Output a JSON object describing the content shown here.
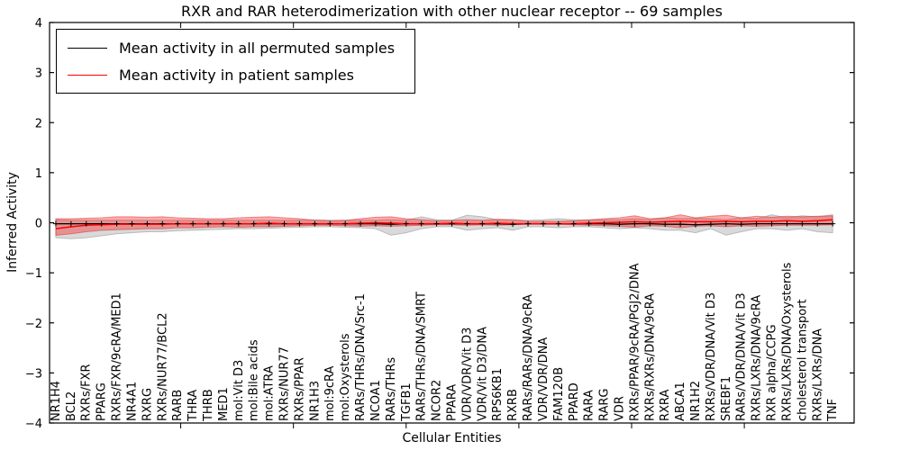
{
  "title": "RXR and RAR heterodimerization with other nuclear receptor -- 69 samples",
  "legend": {
    "items": [
      {
        "label": "Mean activity in all permuted samples",
        "color": "#000000"
      },
      {
        "label": "Mean activity in patient samples",
        "color": "#ff0000"
      }
    ]
  },
  "colors": {
    "permuted_line": "#000000",
    "patient_line": "#ff0000",
    "permuted_band_fill": "rgba(128,128,128,0.30)",
    "permuted_band_edge": "rgba(128,128,128,0.45)",
    "patient_band_fill": "rgba(255,0,0,0.33)",
    "patient_band_edge": "rgba(220,40,40,0.50)",
    "axis": "#000000"
  },
  "chart_data": {
    "type": "line",
    "title": "RXR and RAR heterodimerization with other nuclear receptor -- 69 samples",
    "xlabel": "Cellular Entities",
    "ylabel": "Inferred Activity",
    "ylim": [
      -4,
      4
    ],
    "yticks": [
      4,
      3,
      2,
      1,
      0,
      -1,
      -2,
      -3,
      -4
    ],
    "xtick_marks": [
      8.2,
      15.6,
      23,
      30.4,
      37.8,
      45.2
    ],
    "grid": false,
    "legend_position": "upper left",
    "categories": [
      "NR1H4",
      "BCL2",
      "RXRs/FXR",
      "PPARG",
      "RXRs/FXR/9cRA/MED1",
      "NR4A1",
      "RXRG",
      "RXRs/NUR77/BCL2",
      "RARB",
      "THRA",
      "THRB",
      "MED1",
      "mol:Vit D3",
      "mol:Bile acids",
      "mol:ATRA",
      "RXRs/NUR77",
      "RXRs/PPAR",
      "NR1H3",
      "mol:9cRA",
      "mol:Oxysterols",
      "RARs/THRs/DNA/Src-1",
      "NCOA1",
      "RARs/THRs",
      "TGFB1",
      "RARs/THRs/DNA/SMRT",
      "NCOR2",
      "PPARA",
      "VDR/VDR/Vit D3",
      "VDR/Vit D3/DNA",
      "RPS6KB1",
      "RXRB",
      "RARs/RARs/DNA/9cRA",
      "VDR/VDR/DNA",
      "FAM120B",
      "PPARD",
      "RARA",
      "RARG",
      "VDR",
      "RXRs/PPAR/9cRA/PGJ2/DNA",
      "RXRs/RXRs/DNA/9cRA",
      "RXRA",
      "ABCA1",
      "NR1H2",
      "RXRs/VDR/DNA/Vit D3",
      "SREBF1",
      "RARs/VDR/DNA/Vit D3",
      "RXRs/LXRs/DNA/9cRA",
      "RXR alpha/CCPG",
      "RXRs/LXRs/DNA/Oxysterols",
      "cholesterol transport",
      "RXRs/LXRs/DNA",
      "TNF"
    ],
    "series": [
      {
        "name": "Mean activity in all permuted samples",
        "values": [
          -0.02,
          -0.02,
          -0.02,
          -0.02,
          -0.02,
          -0.02,
          -0.02,
          -0.02,
          -0.02,
          -0.02,
          -0.02,
          -0.02,
          -0.02,
          -0.02,
          -0.02,
          -0.02,
          -0.02,
          -0.02,
          -0.02,
          -0.02,
          -0.02,
          -0.02,
          -0.03,
          -0.02,
          -0.02,
          -0.02,
          -0.02,
          -0.02,
          -0.02,
          -0.02,
          -0.03,
          -0.02,
          -0.02,
          -0.02,
          -0.02,
          -0.02,
          -0.02,
          -0.03,
          -0.02,
          -0.02,
          -0.03,
          -0.03,
          -0.04,
          -0.03,
          -0.02,
          -0.03,
          -0.02,
          -0.02,
          -0.02,
          -0.02,
          -0.02,
          -0.02
        ],
        "band_upper": [
          0.06,
          0.05,
          0.05,
          0.05,
          0.05,
          0.05,
          0.05,
          0.05,
          0.05,
          0.05,
          0.05,
          0.05,
          0.05,
          0.05,
          0.05,
          0.05,
          0.05,
          0.06,
          0.05,
          0.05,
          0.05,
          0.05,
          0.06,
          0.05,
          0.12,
          0.06,
          0.05,
          0.15,
          0.12,
          0.06,
          0.06,
          0.05,
          0.06,
          0.08,
          0.06,
          0.05,
          0.06,
          0.06,
          0.08,
          0.06,
          0.1,
          0.08,
          0.09,
          0.08,
          0.06,
          0.1,
          0.08,
          0.16,
          0.1,
          0.14,
          0.12,
          0.16
        ],
        "band_lower": [
          -0.3,
          -0.32,
          -0.3,
          -0.26,
          -0.22,
          -0.2,
          -0.18,
          -0.18,
          -0.16,
          -0.15,
          -0.14,
          -0.13,
          -0.12,
          -0.12,
          -0.11,
          -0.1,
          -0.09,
          -0.08,
          -0.08,
          -0.09,
          -0.1,
          -0.12,
          -0.25,
          -0.2,
          -0.12,
          -0.08,
          -0.08,
          -0.15,
          -0.12,
          -0.1,
          -0.15,
          -0.08,
          -0.08,
          -0.1,
          -0.08,
          -0.08,
          -0.1,
          -0.12,
          -0.1,
          -0.12,
          -0.15,
          -0.15,
          -0.2,
          -0.12,
          -0.25,
          -0.18,
          -0.12,
          -0.12,
          -0.15,
          -0.12,
          -0.18,
          -0.2
        ]
      },
      {
        "name": "Mean activity in patient samples",
        "values": [
          -0.12,
          -0.08,
          -0.05,
          -0.04,
          -0.03,
          -0.03,
          -0.03,
          -0.03,
          -0.02,
          -0.02,
          -0.02,
          -0.02,
          -0.02,
          -0.02,
          -0.01,
          -0.02,
          -0.02,
          -0.02,
          -0.02,
          -0.02,
          -0.01,
          0.0,
          -0.01,
          -0.02,
          -0.02,
          -0.02,
          -0.01,
          -0.02,
          -0.02,
          -0.01,
          -0.02,
          -0.02,
          -0.02,
          -0.02,
          -0.02,
          -0.01,
          0.0,
          0.01,
          0.02,
          0.01,
          0.02,
          0.03,
          0.02,
          0.02,
          0.03,
          0.02,
          0.03,
          0.03,
          0.04,
          0.03,
          0.04,
          0.06
        ],
        "band_upper": [
          0.08,
          0.08,
          0.09,
          0.1,
          0.12,
          0.12,
          0.11,
          0.12,
          0.1,
          0.09,
          0.08,
          0.08,
          0.1,
          0.11,
          0.12,
          0.1,
          0.08,
          0.05,
          0.04,
          0.05,
          0.08,
          0.11,
          0.12,
          0.08,
          0.06,
          0.04,
          0.05,
          0.06,
          0.05,
          0.07,
          0.06,
          0.03,
          0.03,
          0.03,
          0.04,
          0.06,
          0.08,
          0.1,
          0.14,
          0.08,
          0.1,
          0.16,
          0.1,
          0.13,
          0.15,
          0.1,
          0.13,
          0.11,
          0.13,
          0.12,
          0.13,
          0.14
        ],
        "band_lower": [
          -0.25,
          -0.22,
          -0.18,
          -0.15,
          -0.14,
          -0.13,
          -0.12,
          -0.12,
          -0.1,
          -0.1,
          -0.09,
          -0.08,
          -0.09,
          -0.08,
          -0.08,
          -0.07,
          -0.06,
          -0.05,
          -0.05,
          -0.06,
          -0.07,
          -0.06,
          -0.07,
          -0.06,
          -0.05,
          -0.04,
          -0.04,
          -0.05,
          -0.04,
          -0.05,
          -0.04,
          -0.03,
          -0.03,
          -0.03,
          -0.04,
          -0.05,
          -0.06,
          -0.07,
          -0.09,
          -0.06,
          -0.07,
          -0.1,
          -0.07,
          -0.06,
          -0.08,
          -0.06,
          -0.07,
          -0.06,
          -0.05,
          -0.05,
          -0.05,
          -0.04
        ]
      }
    ]
  }
}
